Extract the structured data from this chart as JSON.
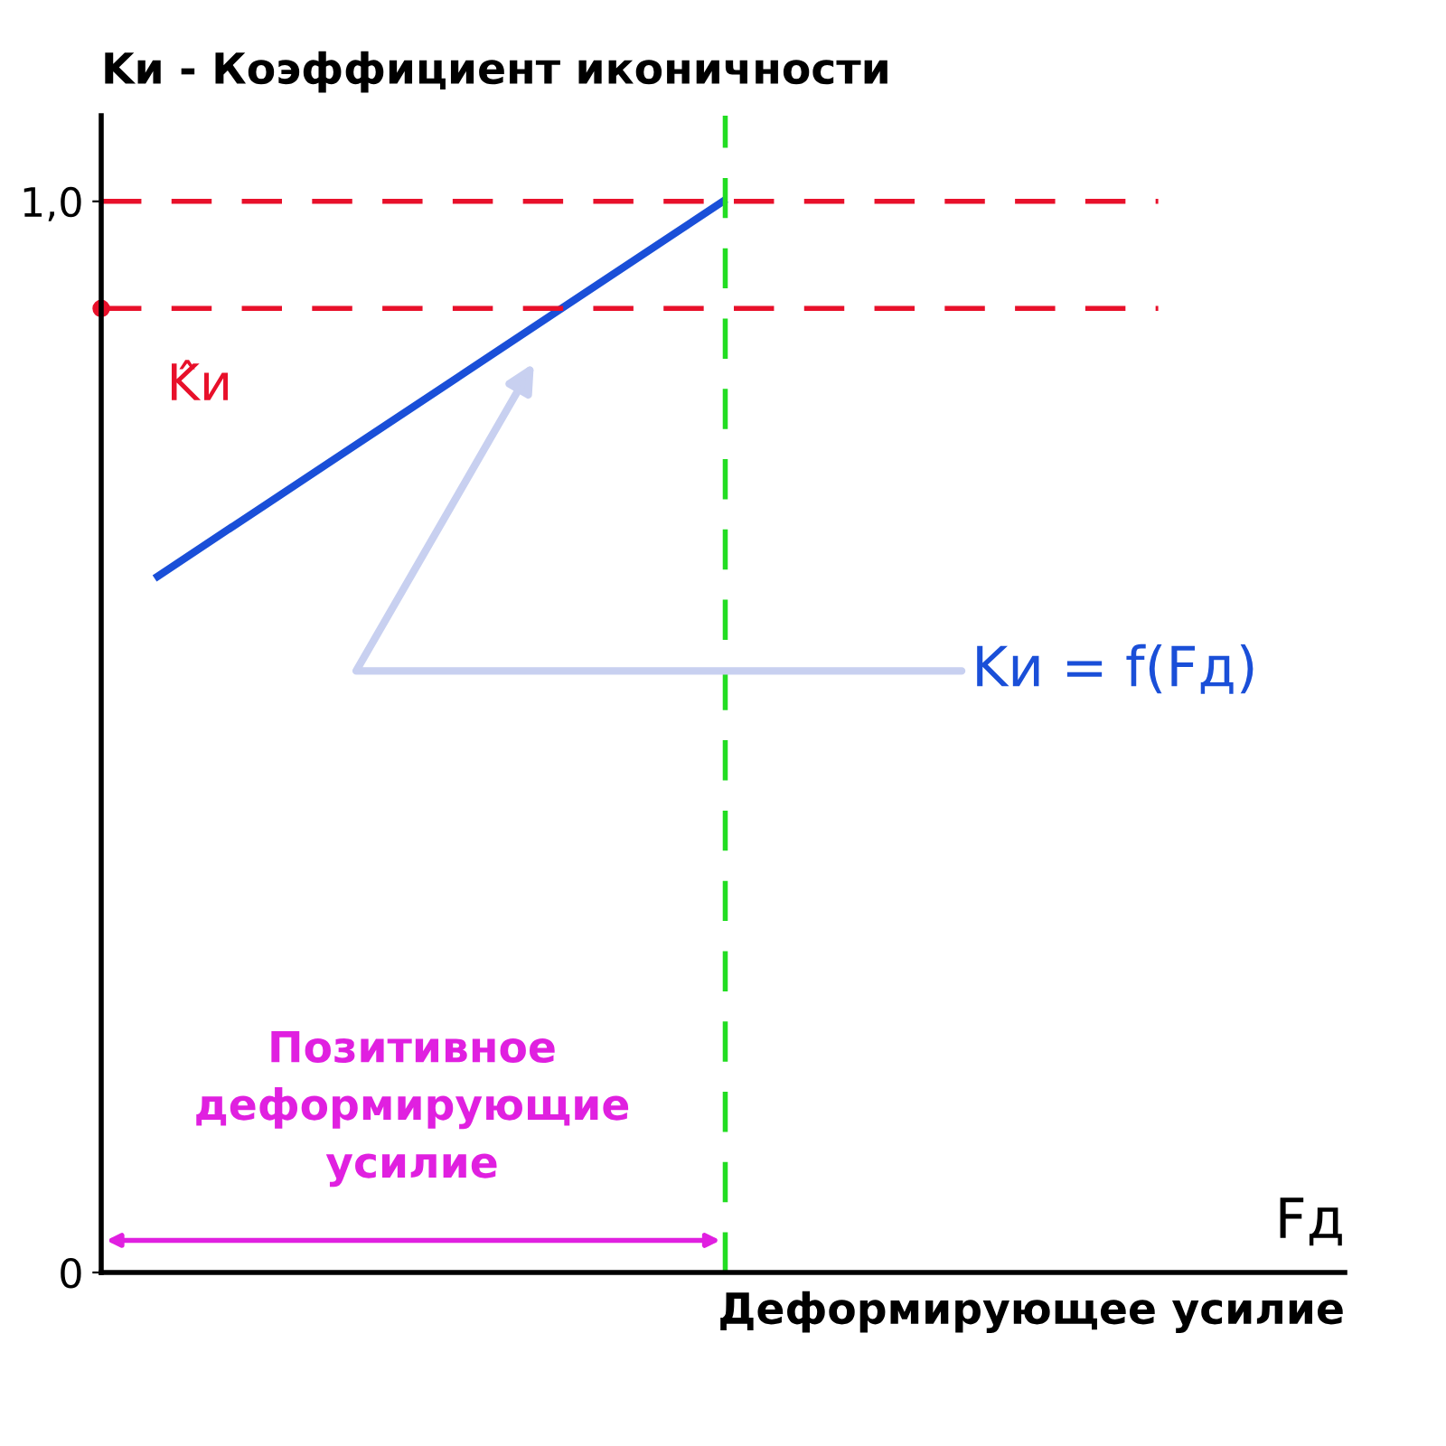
{
  "chart_data": {
    "type": "line",
    "ylabel": "Kи - Коэффициент иконичности",
    "xlabel": "Деформирующее усилие",
    "categories": [
      null,
      null,
      null,
      null,
      null,
      null,
      null,
      null,
      null,
      null,
      null
    ],
    "series": [
      {
        "color": "#1a4fd8",
        "values": [
          0.65,
          0.72,
          0.79,
          0.86,
          0.93,
          1.0,
          null,
          null,
          null,
          null,
          null
        ]
      }
    ],
    "ylim": [
      0,
      1.08
    ],
    "yticks": [
      0,
      {
        "value": 1.0,
        "label": "1,0"
      }
    ],
    "ref_lines": [
      {
        "axis": "y",
        "value": 1.0,
        "color": "#e8102a",
        "line_style": "dashed"
      },
      {
        "axis": "y",
        "value": 0.9,
        "label": "K̂и",
        "color": "#e8102a",
        "line_style": "dashed"
      },
      {
        "axis": "x",
        "color": "#22dd22",
        "line_style": "dashed"
      }
    ],
    "annotations": [
      "Kи = f(Fд)",
      "Fд",
      "Позитивное\nдеформирующие\nусилие"
    ],
    "grid": false,
    "legend": false,
    "marker": "none",
    "line_style": "solid"
  }
}
